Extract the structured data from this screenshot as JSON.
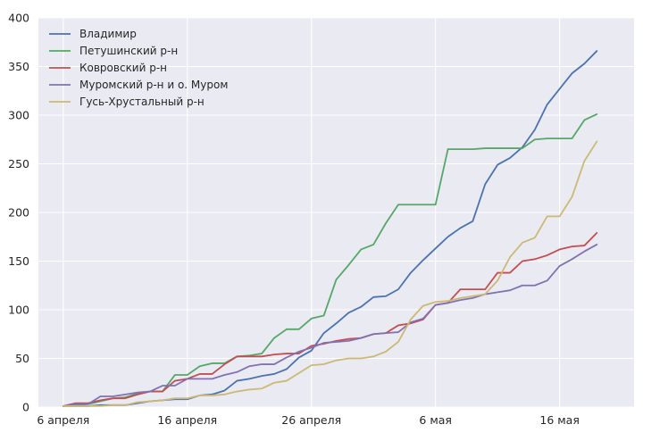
{
  "chart_data": {
    "type": "line",
    "title": "",
    "xlabel": "",
    "ylabel": "",
    "x": [
      0,
      1,
      2,
      3,
      4,
      5,
      6,
      7,
      8,
      9,
      10,
      11,
      12,
      13,
      14,
      15,
      16,
      17,
      18,
      19,
      20,
      21,
      22,
      23,
      24,
      25,
      26,
      27,
      28,
      29,
      30,
      31,
      32,
      33,
      34,
      35,
      36,
      37,
      38,
      39,
      40,
      41,
      42,
      43,
      44
    ],
    "xlim": [
      -2,
      46
    ],
    "ylim": [
      0,
      400
    ],
    "xticks": [
      {
        "value": 0,
        "label": "6 апреля"
      },
      {
        "value": 10,
        "label": "16 апреля"
      },
      {
        "value": 20,
        "label": "26 апреля"
      },
      {
        "value": 30,
        "label": "6 мая"
      },
      {
        "value": 40,
        "label": "16 мая"
      }
    ],
    "yticks": [
      {
        "value": 0,
        "label": "0"
      },
      {
        "value": 50,
        "label": "50"
      },
      {
        "value": 100,
        "label": "100"
      },
      {
        "value": 150,
        "label": "150"
      },
      {
        "value": 200,
        "label": "200"
      },
      {
        "value": 250,
        "label": "250"
      },
      {
        "value": 300,
        "label": "300"
      },
      {
        "value": 350,
        "label": "350"
      },
      {
        "value": 400,
        "label": "400"
      }
    ],
    "legend_position": "top-left",
    "background": "#eaeaf2",
    "grid": true,
    "series": [
      {
        "name": "Владимир",
        "color": "#4c72b0",
        "values": [
          1,
          1,
          1,
          2,
          2,
          2,
          4,
          6,
          7,
          8,
          8,
          12,
          13,
          17,
          27,
          29,
          32,
          34,
          39,
          51,
          58,
          76,
          86,
          97,
          103,
          113,
          114,
          121,
          138,
          151,
          163,
          175,
          184,
          191,
          229,
          249,
          256,
          267,
          285,
          311,
          327,
          343,
          353,
          366,
          null
        ]
      },
      {
        "name": "Петушинский р-н",
        "color": "#55a868",
        "values": [
          1,
          2,
          3,
          6,
          9,
          10,
          14,
          16,
          16,
          33,
          33,
          42,
          45,
          45,
          52,
          53,
          55,
          71,
          80,
          80,
          91,
          94,
          131,
          146,
          162,
          167,
          189,
          208,
          208,
          208,
          208,
          265,
          265,
          265,
          266,
          266,
          266,
          266,
          275,
          276,
          276,
          276,
          295,
          301,
          null
        ]
      },
      {
        "name": "Ковровский р-н",
        "color": "#c44e52",
        "values": [
          1,
          4,
          4,
          7,
          9,
          9,
          13,
          16,
          16,
          27,
          29,
          34,
          34,
          44,
          52,
          52,
          52,
          54,
          55,
          55,
          63,
          65,
          68,
          70,
          71,
          75,
          76,
          84,
          86,
          90,
          105,
          107,
          121,
          121,
          121,
          138,
          138,
          150,
          152,
          156,
          162,
          165,
          166,
          179,
          null
        ]
      },
      {
        "name": "Муромский р-н и о. Муром",
        "color": "#8172b2",
        "values": [
          1,
          3,
          3,
          11,
          11,
          13,
          15,
          16,
          22,
          22,
          29,
          29,
          29,
          33,
          36,
          42,
          44,
          44,
          51,
          57,
          61,
          66,
          67,
          68,
          71,
          75,
          76,
          77,
          87,
          91,
          105,
          107,
          110,
          112,
          116,
          118,
          120,
          125,
          125,
          130,
          145,
          152,
          160,
          167,
          null
        ]
      },
      {
        "name": "Гусь-Хрустальный р-н",
        "color": "#ccb974",
        "values": [
          1,
          1,
          1,
          1,
          2,
          2,
          5,
          6,
          7,
          9,
          9,
          12,
          12,
          13,
          16,
          18,
          19,
          25,
          27,
          35,
          43,
          44,
          48,
          50,
          50,
          52,
          57,
          67,
          90,
          104,
          108,
          109,
          112,
          114,
          116,
          130,
          154,
          169,
          174,
          196,
          196,
          216,
          253,
          273,
          null
        ]
      }
    ]
  }
}
